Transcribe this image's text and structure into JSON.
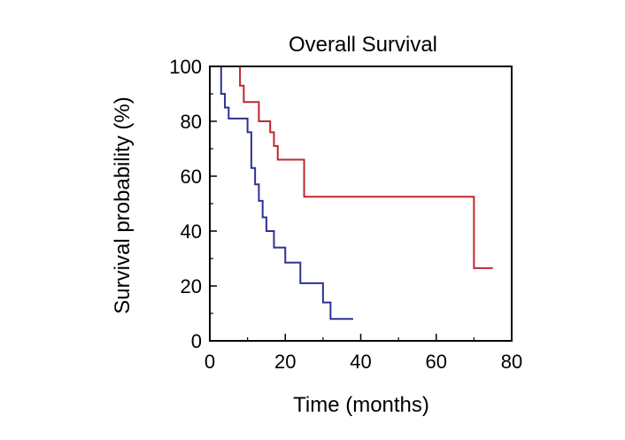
{
  "chart_data": {
    "type": "line",
    "title": "Overall Survival",
    "xlabel": "Time (months)",
    "ylabel": "Survival probability (%)",
    "xlim": [
      0,
      80
    ],
    "ylim": [
      0,
      100
    ],
    "xticks": [
      0,
      20,
      40,
      60,
      80
    ],
    "yticks": [
      0,
      20,
      40,
      60,
      80,
      100
    ],
    "xminor": [
      10,
      30,
      50,
      70
    ],
    "yminor": [
      10,
      30,
      50,
      70,
      90
    ],
    "grid": false,
    "legend": "none",
    "series": [
      {
        "color": "#c0272d",
        "step": true,
        "x": [
          0,
          8,
          9,
          10,
          13,
          14,
          16,
          17,
          18,
          25,
          70,
          75
        ],
        "y": [
          100,
          93,
          87,
          87,
          80,
          80,
          76,
          71,
          66,
          52.5,
          26.5,
          26.5
        ]
      },
      {
        "color": "#2e3192",
        "step": true,
        "x": [
          0,
          3,
          4,
          5,
          7,
          10,
          11,
          12,
          13,
          14,
          15,
          17,
          20,
          22,
          24,
          30,
          32,
          38
        ],
        "y": [
          100,
          90,
          85,
          81,
          81,
          76,
          63,
          57,
          51,
          45,
          40,
          34,
          28.5,
          28.5,
          21,
          14,
          8,
          8
        ]
      }
    ]
  }
}
